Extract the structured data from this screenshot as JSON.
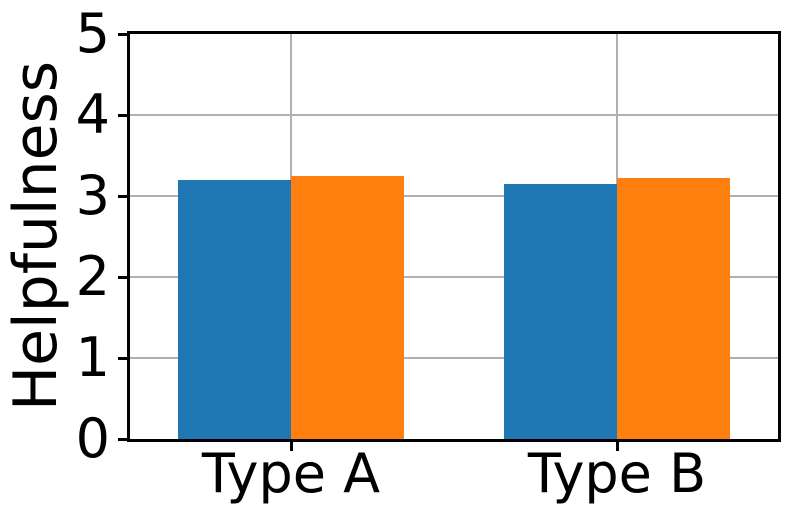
{
  "chart_data": {
    "type": "bar",
    "title": "",
    "xlabel": "",
    "ylabel": "Helpfulness",
    "categories": [
      "Type A",
      "Type B"
    ],
    "series": [
      {
        "name": "blue",
        "color": "#1f77b4",
        "values": [
          3.2,
          3.15
        ]
      },
      {
        "name": "orange",
        "color": "#ff7f0e",
        "values": [
          3.25,
          3.22
        ]
      }
    ],
    "ylim": [
      0,
      5
    ],
    "yticks": [
      0,
      1,
      2,
      3,
      4,
      5
    ],
    "grid": true,
    "legend": false,
    "grid_color": "#b0b0b0",
    "spine_color": "#000000",
    "tick_color": "#000000",
    "text_color": "#000000",
    "background": "#ffffff"
  }
}
